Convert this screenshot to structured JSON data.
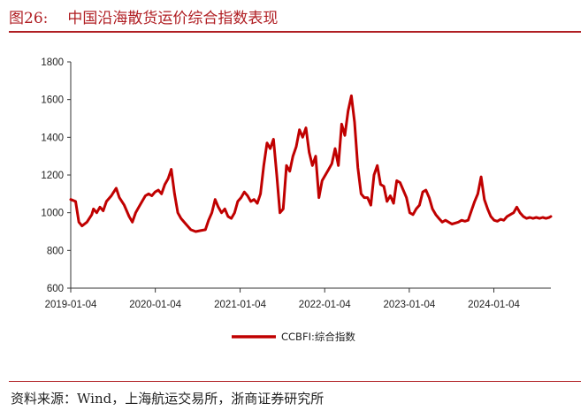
{
  "header": {
    "figure_number": "图26:",
    "title": "中国沿海散货运价综合指数表现"
  },
  "footer": {
    "source": "资料来源：Wind，上海航运交易所，浙商证券研究所"
  },
  "colors": {
    "accent": "#b01e23",
    "series": "#c00000"
  },
  "chart_data": {
    "type": "line",
    "title": "中国沿海散货运价综合指数表现",
    "xlabel": "",
    "ylabel": "",
    "ylim": [
      600,
      1800
    ],
    "yticks": [
      "600",
      "800",
      "1000",
      "1200",
      "1400",
      "1600",
      "1800"
    ],
    "xticks": [
      "2019-01-04",
      "2020-01-04",
      "2021-01-04",
      "2022-01-04",
      "2023-01-04",
      "2024-01-04"
    ],
    "xlim": [
      "2019-01-04",
      "2024-09-06"
    ],
    "grid": false,
    "legend": "bottom-center",
    "series": [
      {
        "name": "CCBFI:综合指数",
        "points": [
          [
            "2019-01-04",
            1070
          ],
          [
            "2019-01-25",
            1060
          ],
          [
            "2019-02-08",
            950
          ],
          [
            "2019-02-22",
            930
          ],
          [
            "2019-03-15",
            950
          ],
          [
            "2019-04-05",
            990
          ],
          [
            "2019-04-12",
            1020
          ],
          [
            "2019-04-26",
            1000
          ],
          [
            "2019-05-10",
            1030
          ],
          [
            "2019-05-24",
            1010
          ],
          [
            "2019-06-07",
            1060
          ],
          [
            "2019-06-28",
            1090
          ],
          [
            "2019-07-19",
            1130
          ],
          [
            "2019-08-02",
            1080
          ],
          [
            "2019-08-23",
            1040
          ],
          [
            "2019-09-13",
            980
          ],
          [
            "2019-09-27",
            950
          ],
          [
            "2019-10-11",
            1000
          ],
          [
            "2019-10-25",
            1030
          ],
          [
            "2019-11-08",
            1060
          ],
          [
            "2019-11-22",
            1090
          ],
          [
            "2019-12-06",
            1100
          ],
          [
            "2019-12-20",
            1090
          ],
          [
            "2020-01-03",
            1110
          ],
          [
            "2020-01-17",
            1120
          ],
          [
            "2020-01-31",
            1100
          ],
          [
            "2020-02-14",
            1150
          ],
          [
            "2020-02-28",
            1180
          ],
          [
            "2020-03-13",
            1230
          ],
          [
            "2020-03-27",
            1100
          ],
          [
            "2020-04-10",
            1000
          ],
          [
            "2020-04-24",
            970
          ],
          [
            "2020-05-15",
            940
          ],
          [
            "2020-06-05",
            910
          ],
          [
            "2020-06-26",
            900
          ],
          [
            "2020-07-17",
            905
          ],
          [
            "2020-08-07",
            910
          ],
          [
            "2020-08-21",
            960
          ],
          [
            "2020-09-04",
            1000
          ],
          [
            "2020-09-18",
            1070
          ],
          [
            "2020-10-02",
            1030
          ],
          [
            "2020-10-16",
            1000
          ],
          [
            "2020-10-30",
            1020
          ],
          [
            "2020-11-13",
            980
          ],
          [
            "2020-11-27",
            970
          ],
          [
            "2020-12-11",
            1000
          ],
          [
            "2020-12-25",
            1060
          ],
          [
            "2021-01-08",
            1080
          ],
          [
            "2021-01-22",
            1110
          ],
          [
            "2021-02-05",
            1090
          ],
          [
            "2021-02-19",
            1060
          ],
          [
            "2021-03-05",
            1070
          ],
          [
            "2021-03-19",
            1050
          ],
          [
            "2021-04-02",
            1100
          ],
          [
            "2021-04-16",
            1250
          ],
          [
            "2021-04-30",
            1370
          ],
          [
            "2021-05-14",
            1340
          ],
          [
            "2021-05-28",
            1390
          ],
          [
            "2021-06-11",
            1200
          ],
          [
            "2021-06-25",
            1000
          ],
          [
            "2021-07-09",
            1020
          ],
          [
            "2021-07-23",
            1250
          ],
          [
            "2021-08-06",
            1220
          ],
          [
            "2021-08-20",
            1300
          ],
          [
            "2021-09-03",
            1350
          ],
          [
            "2021-09-17",
            1440
          ],
          [
            "2021-10-01",
            1400
          ],
          [
            "2021-10-15",
            1450
          ],
          [
            "2021-10-29",
            1320
          ],
          [
            "2021-11-12",
            1250
          ],
          [
            "2021-11-26",
            1300
          ],
          [
            "2021-12-10",
            1080
          ],
          [
            "2021-12-24",
            1170
          ],
          [
            "2022-01-07",
            1200
          ],
          [
            "2022-01-21",
            1230
          ],
          [
            "2022-02-04",
            1260
          ],
          [
            "2022-02-18",
            1340
          ],
          [
            "2022-03-04",
            1250
          ],
          [
            "2022-03-18",
            1470
          ],
          [
            "2022-04-01",
            1410
          ],
          [
            "2022-04-15",
            1540
          ],
          [
            "2022-04-29",
            1620
          ],
          [
            "2022-05-13",
            1480
          ],
          [
            "2022-05-27",
            1240
          ],
          [
            "2022-06-10",
            1100
          ],
          [
            "2022-06-24",
            1080
          ],
          [
            "2022-07-08",
            1080
          ],
          [
            "2022-07-22",
            1040
          ],
          [
            "2022-08-05",
            1200
          ],
          [
            "2022-08-19",
            1250
          ],
          [
            "2022-09-02",
            1150
          ],
          [
            "2022-09-16",
            1140
          ],
          [
            "2022-09-30",
            1060
          ],
          [
            "2022-10-14",
            1090
          ],
          [
            "2022-10-28",
            1050
          ],
          [
            "2022-11-11",
            1170
          ],
          [
            "2022-11-25",
            1160
          ],
          [
            "2022-12-09",
            1120
          ],
          [
            "2022-12-23",
            1080
          ],
          [
            "2023-01-06",
            1000
          ],
          [
            "2023-01-20",
            990
          ],
          [
            "2023-02-03",
            1020
          ],
          [
            "2023-02-17",
            1040
          ],
          [
            "2023-03-03",
            1110
          ],
          [
            "2023-03-17",
            1120
          ],
          [
            "2023-03-31",
            1080
          ],
          [
            "2023-04-14",
            1020
          ],
          [
            "2023-04-28",
            990
          ],
          [
            "2023-05-12",
            970
          ],
          [
            "2023-05-26",
            950
          ],
          [
            "2023-06-09",
            960
          ],
          [
            "2023-06-23",
            950
          ],
          [
            "2023-07-07",
            940
          ],
          [
            "2023-07-21",
            945
          ],
          [
            "2023-08-04",
            950
          ],
          [
            "2023-08-18",
            960
          ],
          [
            "2023-09-01",
            955
          ],
          [
            "2023-09-15",
            960
          ],
          [
            "2023-09-29",
            1010
          ],
          [
            "2023-10-13",
            1060
          ],
          [
            "2023-10-27",
            1100
          ],
          [
            "2023-11-10",
            1190
          ],
          [
            "2023-11-24",
            1070
          ],
          [
            "2023-12-08",
            1020
          ],
          [
            "2023-12-22",
            980
          ],
          [
            "2024-01-05",
            960
          ],
          [
            "2024-01-19",
            955
          ],
          [
            "2024-02-02",
            965
          ],
          [
            "2024-02-16",
            960
          ],
          [
            "2024-03-01",
            980
          ],
          [
            "2024-03-15",
            990
          ],
          [
            "2024-03-29",
            1000
          ],
          [
            "2024-04-12",
            1030
          ],
          [
            "2024-04-26",
            1000
          ],
          [
            "2024-05-10",
            980
          ],
          [
            "2024-05-24",
            970
          ],
          [
            "2024-06-07",
            975
          ],
          [
            "2024-06-21",
            970
          ],
          [
            "2024-07-05",
            975
          ],
          [
            "2024-07-19",
            970
          ],
          [
            "2024-08-02",
            975
          ],
          [
            "2024-08-16",
            970
          ],
          [
            "2024-08-30",
            975
          ],
          [
            "2024-09-06",
            980
          ]
        ]
      }
    ]
  }
}
